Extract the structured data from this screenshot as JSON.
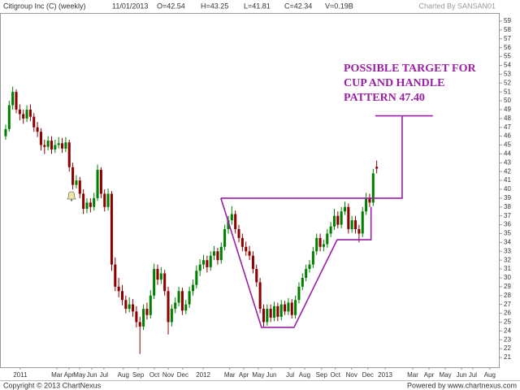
{
  "chart_data": {
    "type": "candlestick",
    "header": [
      "Citigroup Inc (C) (weekly)",
      "11/01/2013",
      "O=42.54",
      "H=43.25",
      "L=41.81",
      "C=42.34",
      "V=0.19B"
    ],
    "credit": "Charted By SANSAN01",
    "footer_left": "Copyright © 2013 ChartNexus",
    "footer_right": "Powered by www.chartnexus.com",
    "up_color": "#008000",
    "down_color": "#8b0000",
    "open": [
      46.0,
      46.8,
      49.5,
      51.0,
      49.0,
      48.5,
      48.0,
      49.0,
      48.2,
      47.0,
      46.5,
      45.0,
      44.8,
      45.5,
      44.5,
      45.0,
      45.2,
      44.6,
      45.3,
      42.5,
      40.5,
      41.0,
      39.5,
      37.8,
      38.5,
      38.0,
      39.0,
      42.2,
      39.5,
      38.0,
      39.5,
      31.5,
      29.0,
      28.5,
      27.5,
      26.5,
      27.0,
      26.2,
      25.0,
      24.5,
      26.5,
      25.8,
      28.0,
      31.0,
      29.8,
      30.5,
      28.5,
      25.0,
      26.5,
      27.2,
      28.5,
      26.3,
      27.0,
      28.5,
      29.2,
      30.8,
      31.5,
      32.0,
      31.2,
      32.5,
      33.0,
      32.0,
      33.5,
      35.5,
      36.5,
      37.2,
      35.5,
      34.5,
      33.5,
      33.0,
      32.5,
      31.0,
      29.5,
      26.5,
      25.0,
      26.5,
      25.5,
      26.8,
      25.6,
      27.0,
      26.2,
      27.2,
      25.8,
      27.5,
      29.0,
      30.0,
      31.0,
      31.5,
      33.0,
      34.5,
      33.5,
      33.8,
      35.0,
      35.8,
      37.0,
      36.0,
      37.5,
      38.0,
      35.5,
      36.5,
      35.5,
      35.0,
      37.5,
      39.0,
      38.5,
      42.54
    ],
    "high": [
      47.3,
      50.0,
      51.6,
      51.3,
      49.6,
      49.0,
      49.5,
      49.6,
      48.6,
      47.6,
      46.9,
      45.6,
      46.0,
      46.0,
      45.6,
      45.9,
      45.8,
      45.9,
      45.6,
      43.0,
      41.6,
      41.4,
      40.0,
      39.0,
      39.0,
      39.6,
      42.8,
      42.5,
      40.0,
      40.1,
      39.8,
      32.3,
      30.0,
      29.2,
      28.0,
      27.8,
      27.6,
      26.8,
      25.6,
      27.0,
      27.2,
      28.6,
      31.6,
      31.5,
      31.2,
      30.9,
      29.0,
      27.0,
      27.8,
      29.0,
      28.9,
      27.5,
      29.0,
      29.8,
      31.4,
      32.1,
      32.6,
      32.5,
      33.0,
      33.6,
      33.4,
      34.0,
      36.0,
      37.0,
      38.1,
      37.6,
      36.0,
      35.0,
      34.1,
      33.6,
      33.0,
      31.5,
      30.0,
      27.0,
      27.0,
      27.0,
      27.3,
      27.2,
      27.5,
      27.4,
      27.7,
      27.6,
      28.0,
      29.5,
      30.5,
      31.5,
      32.0,
      33.5,
      35.0,
      35.0,
      34.3,
      35.5,
      36.3,
      37.8,
      37.5,
      38.0,
      38.6,
      38.4,
      37.0,
      37.0,
      36.0,
      38.0,
      39.6,
      39.5,
      42.3,
      43.25
    ],
    "low": [
      45.6,
      46.5,
      49.0,
      48.6,
      47.8,
      47.4,
      47.6,
      47.7,
      46.5,
      45.9,
      44.4,
      44.0,
      44.4,
      44.0,
      44.1,
      44.6,
      44.1,
      44.2,
      42.0,
      40.0,
      40.1,
      39.0,
      37.2,
      37.3,
      37.4,
      37.6,
      38.7,
      39.0,
      37.5,
      37.6,
      30.8,
      28.5,
      27.8,
      26.9,
      26.0,
      26.1,
      25.6,
      24.4,
      21.4,
      24.1,
      25.3,
      25.4,
      27.6,
      29.2,
      29.3,
      28.0,
      23.6,
      24.5,
      26.0,
      26.8,
      25.8,
      25.9,
      26.6,
      28.0,
      28.8,
      30.2,
      31.0,
      30.6,
      30.8,
      32.0,
      31.5,
      31.6,
      33.1,
      35.0,
      36.0,
      35.0,
      34.0,
      33.0,
      32.5,
      32.0,
      30.5,
      29.0,
      26.0,
      24.5,
      24.6,
      25.0,
      25.1,
      25.1,
      25.2,
      25.8,
      25.8,
      25.4,
      25.4,
      27.1,
      28.6,
      29.6,
      30.6,
      31.1,
      32.6,
      33.0,
      33.0,
      33.4,
      34.6,
      35.4,
      35.6,
      35.6,
      37.1,
      35.0,
      35.1,
      35.0,
      34.0,
      34.6,
      37.1,
      38.0,
      38.1,
      41.81
    ],
    "close": [
      46.8,
      49.5,
      51.0,
      49.0,
      48.5,
      48.0,
      49.0,
      48.2,
      47.0,
      46.5,
      45.0,
      44.8,
      45.5,
      44.5,
      45.0,
      45.2,
      44.6,
      45.3,
      42.5,
      40.5,
      41.0,
      39.5,
      37.8,
      38.5,
      38.0,
      39.0,
      42.2,
      39.5,
      38.0,
      39.5,
      31.5,
      29.0,
      28.5,
      27.5,
      26.5,
      27.0,
      26.2,
      25.0,
      24.5,
      26.5,
      25.8,
      28.0,
      31.0,
      29.8,
      30.5,
      28.5,
      25.0,
      26.5,
      27.2,
      28.5,
      26.3,
      27.0,
      28.5,
      29.2,
      30.8,
      31.5,
      32.0,
      31.2,
      32.5,
      33.0,
      32.0,
      33.5,
      35.5,
      36.5,
      37.2,
      35.5,
      34.5,
      33.5,
      33.0,
      32.5,
      31.0,
      29.5,
      26.5,
      25.0,
      26.5,
      25.5,
      26.8,
      25.6,
      27.0,
      26.2,
      27.2,
      25.8,
      27.5,
      29.0,
      30.0,
      31.0,
      31.5,
      33.0,
      34.5,
      33.5,
      33.8,
      35.0,
      35.8,
      37.0,
      36.0,
      37.5,
      38.0,
      35.5,
      36.5,
      35.5,
      35.0,
      37.5,
      39.0,
      38.5,
      41.8,
      42.34
    ],
    "xlim": [
      -1.6,
      139.8
    ],
    "ylim": [
      19.9,
      60.1
    ],
    "xticks": [
      {
        "value": 4.1,
        "label": "2011"
      },
      {
        "value": 14.5,
        "label": "Mar"
      },
      {
        "value": 17.9,
        "label": "Apr"
      },
      {
        "value": 20.9,
        "label": "May"
      },
      {
        "value": 24.4,
        "label": "Jun"
      },
      {
        "value": 27.8,
        "label": "Jul"
      },
      {
        "value": 33.3,
        "label": "Aug"
      },
      {
        "value": 37.5,
        "label": "Sep"
      },
      {
        "value": 42.1,
        "label": "Oct"
      },
      {
        "value": 46,
        "label": "Nov"
      },
      {
        "value": 50.1,
        "label": "Dec"
      },
      {
        "value": 55.9,
        "label": "2012"
      },
      {
        "value": 63.4,
        "label": "Mar"
      },
      {
        "value": 67.4,
        "label": "Apr"
      },
      {
        "value": 71.5,
        "label": "May"
      },
      {
        "value": 75.2,
        "label": "Jun"
      },
      {
        "value": 80.5,
        "label": "Jul"
      },
      {
        "value": 84.6,
        "label": "Aug"
      },
      {
        "value": 89.4,
        "label": "Sep"
      },
      {
        "value": 93.3,
        "label": "Oct"
      },
      {
        "value": 97.9,
        "label": "Nov"
      },
      {
        "value": 102.5,
        "label": "Dec"
      },
      {
        "value": 107.4,
        "label": "2013"
      },
      {
        "value": 115.2,
        "label": "Mar"
      },
      {
        "value": 119.8,
        "label": "Apr"
      },
      {
        "value": 124.4,
        "label": "May"
      },
      {
        "value": 129,
        "label": "Jun"
      },
      {
        "value": 132.2,
        "label": "Jul"
      },
      {
        "value": 137,
        "label": "Aug"
      }
    ],
    "yticks": [
      21,
      22,
      23,
      24,
      25,
      26,
      27,
      28,
      29,
      30,
      31,
      32,
      33,
      34,
      35,
      36,
      37,
      38,
      39,
      40,
      41,
      42,
      43,
      44,
      45,
      46,
      47,
      48,
      49,
      50,
      51,
      52,
      53,
      54,
      55,
      56,
      57,
      58,
      59
    ],
    "pattern_color": "#9b1fa6",
    "pattern_lines": [
      {
        "x": [
          60.9,
          72.4,
          81.6,
          93.8,
          103.4,
          103.4
        ],
        "y": [
          39.0,
          24.4,
          24.4,
          34.3,
          34.3,
          38.0
        ]
      },
      {
        "x": [
          60.9,
          112.2,
          112.2
        ],
        "y": [
          39.0,
          39.0,
          48.3
        ]
      },
      {
        "x": [
          104.6,
          120.9
        ],
        "y": [
          48.3,
          48.3
        ]
      }
    ],
    "annotation": [
      "POSSIBLE TARGET FOR",
      "CUP AND HANDLE",
      "PATTERN 47.40"
    ]
  }
}
